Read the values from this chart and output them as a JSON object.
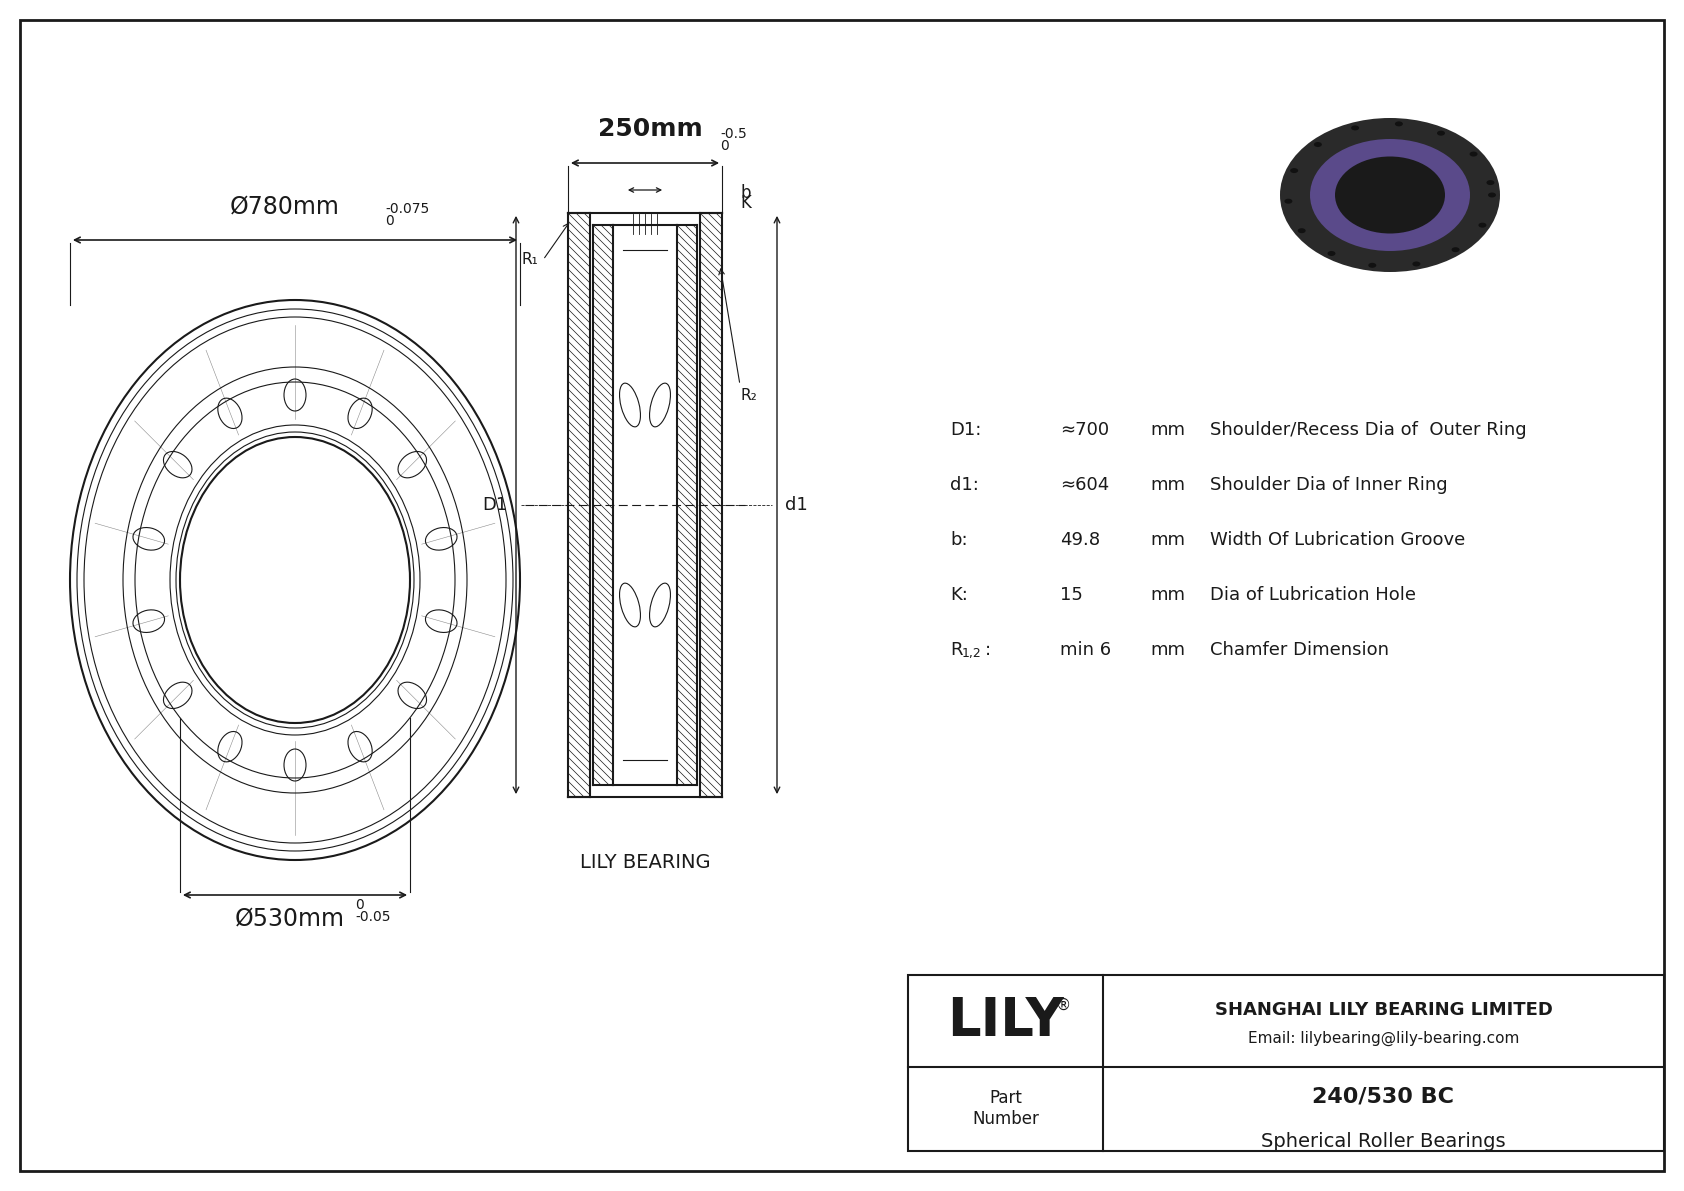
{
  "bg_color": "#ffffff",
  "line_color": "#1a1a1a",
  "outer_diameter_label": "Ø780mm",
  "outer_diameter_tol_upper": "0",
  "outer_diameter_tol_lower": "-0.075",
  "inner_diameter_label": "Ø530mm",
  "inner_diameter_tol_upper": "0",
  "inner_diameter_tol_lower": "-0.05",
  "width_label": "250mm",
  "width_tol_upper": "0",
  "width_tol_lower": "-0.5",
  "specs": [
    [
      "D1:",
      "≈700",
      "mm",
      "Shoulder/Recess Dia of  Outer Ring"
    ],
    [
      "d1:",
      "≈604",
      "mm",
      "Shoulder Dia of Inner Ring"
    ],
    [
      "b:",
      "49.8",
      "mm",
      "Width Of Lubrication Groove"
    ],
    [
      "K:",
      "15",
      "mm",
      "Dia of Lubrication Hole"
    ],
    [
      "R1,2:",
      "min 6",
      "mm",
      "Chamfer Dimension"
    ]
  ],
  "company_name": "SHANGHAI LILY BEARING LIMITED",
  "company_email": "Email: lilybearing@lily-bearing.com",
  "part_number": "240/530 BC",
  "part_type": "Spherical Roller Bearings",
  "lily_logo": "LILY",
  "brand_label": "LILY BEARING"
}
